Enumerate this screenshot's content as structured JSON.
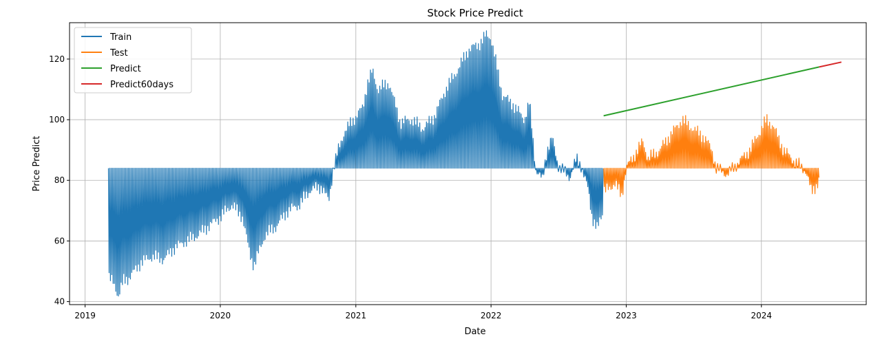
{
  "chart_data": {
    "type": "line",
    "title": "Stock Price Predict",
    "xlabel": "Date",
    "ylabel": "Price Predict",
    "xlim": [
      "2018-11-20",
      "2024-10-10"
    ],
    "ylim": [
      39,
      132
    ],
    "x_ticks": [
      "2019-01-01",
      "2020-01-01",
      "2021-01-01",
      "2022-01-01",
      "2023-01-01",
      "2024-01-01"
    ],
    "x_tick_labels": [
      "2019",
      "2020",
      "2021",
      "2022",
      "2023",
      "2024"
    ],
    "y_ticks": [
      40,
      60,
      80,
      100,
      120
    ],
    "grid": true,
    "legend_position": "top-left",
    "series": [
      {
        "name": "Train",
        "color": "#1f77b4",
        "style": "oscillating",
        "baseline": 84,
        "start": "2019-03-05",
        "end": "2022-10-31",
        "envelope": [
          [
            "2019-03-05",
            48
          ],
          [
            "2019-03-20",
            46
          ],
          [
            "2019-04-01",
            42
          ],
          [
            "2019-04-15",
            47
          ],
          [
            "2019-05-01",
            48
          ],
          [
            "2019-06-01",
            53
          ],
          [
            "2019-07-01",
            55
          ],
          [
            "2019-08-01",
            54
          ],
          [
            "2019-09-01",
            58
          ],
          [
            "2019-10-01",
            60
          ],
          [
            "2019-11-01",
            62
          ],
          [
            "2019-12-01",
            65
          ],
          [
            "2020-01-01",
            68
          ],
          [
            "2020-02-01",
            72
          ],
          [
            "2020-03-01",
            68
          ],
          [
            "2020-03-20",
            56
          ],
          [
            "2020-04-01",
            52
          ],
          [
            "2020-05-01",
            62
          ],
          [
            "2020-06-01",
            65
          ],
          [
            "2020-07-01",
            70
          ],
          [
            "2020-08-01",
            72
          ],
          [
            "2020-09-01",
            77
          ],
          [
            "2020-10-01",
            78
          ],
          [
            "2020-10-20",
            73
          ],
          [
            "2020-11-01",
            84
          ],
          [
            "2020-11-15",
            90
          ],
          [
            "2020-12-01",
            96
          ],
          [
            "2021-01-01",
            101
          ],
          [
            "2021-01-20",
            104
          ],
          [
            "2021-02-01",
            112
          ],
          [
            "2021-02-15",
            116
          ],
          [
            "2021-03-01",
            110
          ],
          [
            "2021-04-01",
            112
          ],
          [
            "2021-05-01",
            99
          ],
          [
            "2021-06-01",
            100
          ],
          [
            "2021-07-01",
            97
          ],
          [
            "2021-08-01",
            101
          ],
          [
            "2021-09-01",
            110
          ],
          [
            "2021-10-01",
            116
          ],
          [
            "2021-11-01",
            123
          ],
          [
            "2021-12-01",
            125
          ],
          [
            "2021-12-20",
            128
          ],
          [
            "2022-01-01",
            127
          ],
          [
            "2022-02-01",
            108
          ],
          [
            "2022-03-01",
            105
          ],
          [
            "2022-04-01",
            100
          ],
          [
            "2022-04-15",
            106
          ],
          [
            "2022-05-01",
            84
          ],
          [
            "2022-05-20",
            80
          ],
          [
            "2022-06-01",
            90
          ],
          [
            "2022-06-15",
            94
          ],
          [
            "2022-07-01",
            85
          ],
          [
            "2022-08-01",
            81
          ],
          [
            "2022-08-20",
            87
          ],
          [
            "2022-09-01",
            85
          ],
          [
            "2022-09-20",
            77
          ],
          [
            "2022-10-01",
            68
          ],
          [
            "2022-10-15",
            64
          ],
          [
            "2022-10-31",
            70
          ]
        ]
      },
      {
        "name": "Test",
        "color": "#ff7f0e",
        "style": "oscillating",
        "baseline": 84,
        "start": "2022-11-01",
        "end": "2024-06-05",
        "envelope": [
          [
            "2022-11-01",
            76
          ],
          [
            "2022-12-01",
            79
          ],
          [
            "2022-12-20",
            75
          ],
          [
            "2023-01-01",
            84
          ],
          [
            "2023-02-01",
            90
          ],
          [
            "2023-02-15",
            93
          ],
          [
            "2023-03-01",
            87
          ],
          [
            "2023-04-01",
            90
          ],
          [
            "2023-05-01",
            95
          ],
          [
            "2023-06-01",
            100
          ],
          [
            "2023-06-20",
            98
          ],
          [
            "2023-07-01",
            97
          ],
          [
            "2023-08-01",
            94
          ],
          [
            "2023-08-20",
            90
          ],
          [
            "2023-09-01",
            84
          ],
          [
            "2023-10-01",
            82
          ],
          [
            "2023-11-01",
            86
          ],
          [
            "2023-12-01",
            90
          ],
          [
            "2024-01-01",
            97
          ],
          [
            "2024-01-15",
            100
          ],
          [
            "2024-02-01",
            98
          ],
          [
            "2024-03-01",
            90
          ],
          [
            "2024-04-01",
            86
          ],
          [
            "2024-05-01",
            83
          ],
          [
            "2024-05-15",
            76
          ],
          [
            "2024-06-05",
            80
          ]
        ]
      },
      {
        "name": "Predict",
        "color": "#2ca02c",
        "style": "line",
        "points": [
          [
            "2022-11-01",
            101.3
          ],
          [
            "2024-06-05",
            117.4
          ]
        ]
      },
      {
        "name": "Predict60days",
        "color": "#d62728",
        "style": "line",
        "points": [
          [
            "2024-06-05",
            117.4
          ],
          [
            "2024-08-04",
            119.0
          ]
        ]
      }
    ]
  }
}
